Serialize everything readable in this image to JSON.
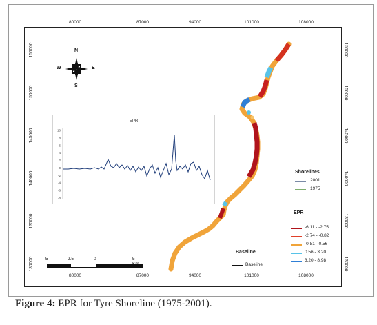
{
  "caption": {
    "label": "Figure 4:",
    "text": " EPR for Tyre Shoreline (1975-2001)."
  },
  "axes": {
    "x_ticks": [
      "80000",
      "87000",
      "94000",
      "101000",
      "108000"
    ],
    "y_ticks": [
      "155000",
      "150000",
      "145000",
      "140000",
      "135000",
      "130000"
    ]
  },
  "compass": {
    "n": "N",
    "s": "S",
    "e": "E",
    "w": "W"
  },
  "inset": {
    "title": "EPR",
    "y_ticks": [
      "10",
      "8",
      "6",
      "4",
      "2",
      "0",
      "-2",
      "-4",
      "-6",
      "-8"
    ]
  },
  "legend_shorelines": {
    "title": "Shorelines",
    "items": [
      {
        "label": "2001",
        "color": "#7a8aa6"
      },
      {
        "label": "1975",
        "color": "#7fae6e"
      }
    ]
  },
  "legend_epr": {
    "title": "EPR",
    "items": [
      {
        "label": "-6.11 - -2.75",
        "color": "#b0141c"
      },
      {
        "label": "-2.74 - -0.82",
        "color": "#e0412a"
      },
      {
        "label": "-0.81 - 0.56",
        "color": "#f0a43a"
      },
      {
        "label": "0.56 - 3.20",
        "color": "#58c3e8"
      },
      {
        "label": "3.20 - 8.98",
        "color": "#2f7fd6"
      }
    ]
  },
  "baseline": {
    "title": "Baseline",
    "item": "Baseline"
  },
  "scale": {
    "labels": [
      "5",
      "2.5",
      "0",
      "5 Km"
    ]
  }
}
